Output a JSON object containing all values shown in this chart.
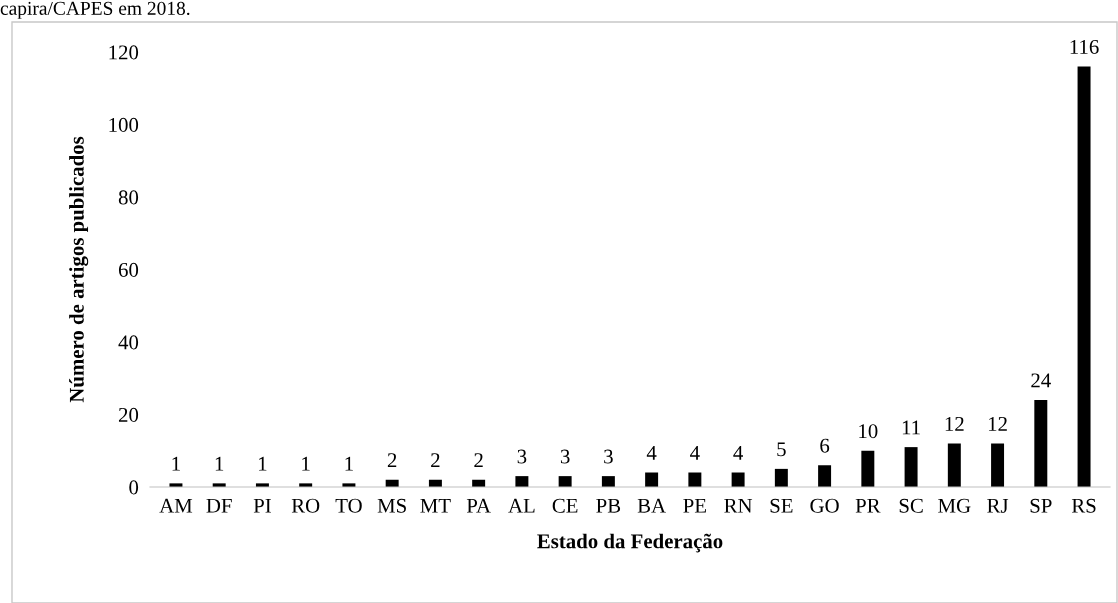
{
  "chart_data": {
    "type": "bar",
    "xlabel": "Estado da Federação",
    "ylabel": "Número de artigos publicados",
    "annotations": [
      "capira/CAPES em 2018."
    ],
    "categories": [
      "AM",
      "DF",
      "PI",
      "RO",
      "TO",
      "MS",
      "MT",
      "PA",
      "AL",
      "CE",
      "PB",
      "BA",
      "PE",
      "RN",
      "SE",
      "GO",
      "PR",
      "SC",
      "MG",
      "RJ",
      "SP",
      "RS"
    ],
    "values": [
      1,
      1,
      1,
      1,
      1,
      2,
      2,
      2,
      3,
      3,
      3,
      4,
      4,
      4,
      5,
      6,
      10,
      11,
      12,
      12,
      24,
      116
    ],
    "color": "#000000",
    "ylim": [
      0,
      120
    ],
    "yticks": [
      0,
      20,
      40,
      60,
      80,
      100,
      120
    ],
    "data_labels": true,
    "grid": false,
    "legend": false
  }
}
